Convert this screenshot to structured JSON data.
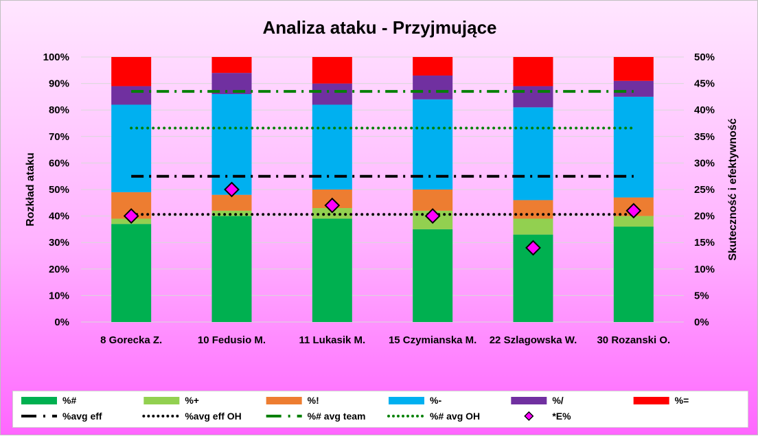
{
  "chart_data": {
    "type": "bar",
    "stacked": true,
    "title": "Analiza ataku - Przyjmujące",
    "ylabel": "Rozkład ataku",
    "y2label": "Skuteczność i efektywność",
    "ylim": [
      0,
      100
    ],
    "y2lim": [
      0,
      50
    ],
    "yticks": [
      "0%",
      "10%",
      "20%",
      "30%",
      "40%",
      "50%",
      "60%",
      "70%",
      "80%",
      "90%",
      "100%"
    ],
    "y2ticks": [
      "0%",
      "5%",
      "10%",
      "15%",
      "20%",
      "25%",
      "30%",
      "35%",
      "40%",
      "45%",
      "50%"
    ],
    "grid": true,
    "legend_position": "bottom",
    "categories": [
      "8 Gorecka Z.",
      "10 Fedusio M.",
      "11 Lukasik M.",
      "15 Czymianska M.",
      "22 Szlagowska W.",
      "30 Rozanski O."
    ],
    "series": [
      {
        "name": "%#",
        "color": "#00b050",
        "values": [
          37,
          40,
          39,
          35,
          33,
          36
        ]
      },
      {
        "name": "%+",
        "color": "#92d050",
        "values": [
          2,
          2,
          4,
          7,
          6,
          4
        ]
      },
      {
        "name": "%!",
        "color": "#ed7d31",
        "values": [
          10,
          6,
          7,
          8,
          7,
          7
        ]
      },
      {
        "name": "%-",
        "color": "#00b0f0",
        "values": [
          33,
          38,
          32,
          34,
          35,
          38
        ]
      },
      {
        "name": "%/",
        "color": "#7030a0",
        "values": [
          7,
          8,
          8,
          9,
          8,
          6
        ]
      },
      {
        "name": "%=",
        "color": "#ff0000",
        "values": [
          11,
          6,
          10,
          7,
          11,
          9
        ]
      }
    ],
    "lines": [
      {
        "name": "%avg eff",
        "color": "#000000",
        "style": "dash-dot",
        "axis": "secondary",
        "value": 27.5
      },
      {
        "name": "%avg eff OH",
        "color": "#000000",
        "style": "dotted",
        "axis": "secondary",
        "value": 20.3
      },
      {
        "name": "%# avg team",
        "color": "#008000",
        "style": "dash-dot",
        "axis": "secondary",
        "value": 43.5
      },
      {
        "name": "%# avg OH",
        "color": "#008000",
        "style": "dotted",
        "axis": "secondary",
        "value": 36.6
      }
    ],
    "markers": {
      "name": "*E%",
      "color": "#ff00ff",
      "axis": "secondary",
      "values": [
        20,
        25,
        22,
        20,
        14,
        21
      ]
    }
  }
}
